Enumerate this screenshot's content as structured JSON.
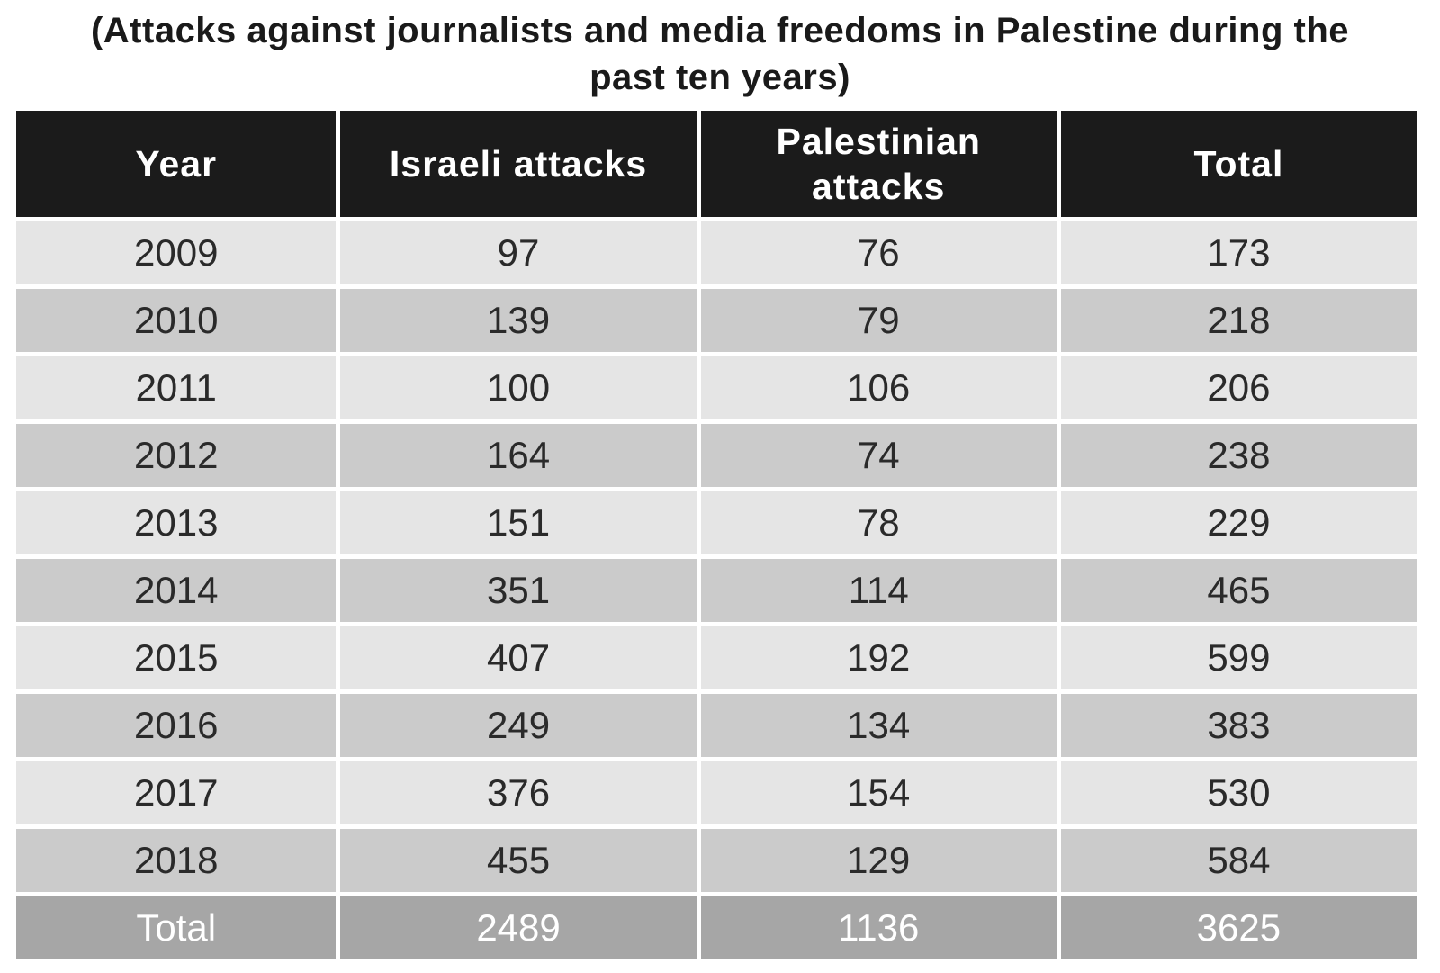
{
  "chart_data": {
    "type": "table",
    "title_lines": [
      "(Attacks against journalists and media freedoms in Palestine during the",
      "past ten years)"
    ],
    "columns": [
      "Year",
      "Israeli attacks",
      "Palestinian attacks",
      "Total"
    ],
    "header_lines": [
      [
        "Year"
      ],
      [
        "Israeli attacks"
      ],
      [
        "Palestinian",
        "attacks"
      ],
      [
        "Total"
      ]
    ],
    "rows": [
      [
        "2009",
        "97",
        "76",
        "173"
      ],
      [
        "2010",
        "139",
        "79",
        "218"
      ],
      [
        "2011",
        "100",
        "106",
        "206"
      ],
      [
        "2012",
        "164",
        "74",
        "238"
      ],
      [
        "2013",
        "151",
        "78",
        "229"
      ],
      [
        "2014",
        "351",
        "114",
        "465"
      ],
      [
        "2015",
        "407",
        "192",
        "599"
      ],
      [
        "2016",
        "249",
        "134",
        "383"
      ],
      [
        "2017",
        "376",
        "154",
        "530"
      ],
      [
        "2018",
        "455",
        "129",
        "584"
      ]
    ],
    "total_row": [
      "Total",
      "2489",
      "1136",
      "3625"
    ]
  },
  "colors": {
    "header_bg": "#1b1b1b",
    "row_light": "#e5e5e5",
    "row_dark": "#cbcbcb",
    "total_bg": "#a6a6a6"
  }
}
